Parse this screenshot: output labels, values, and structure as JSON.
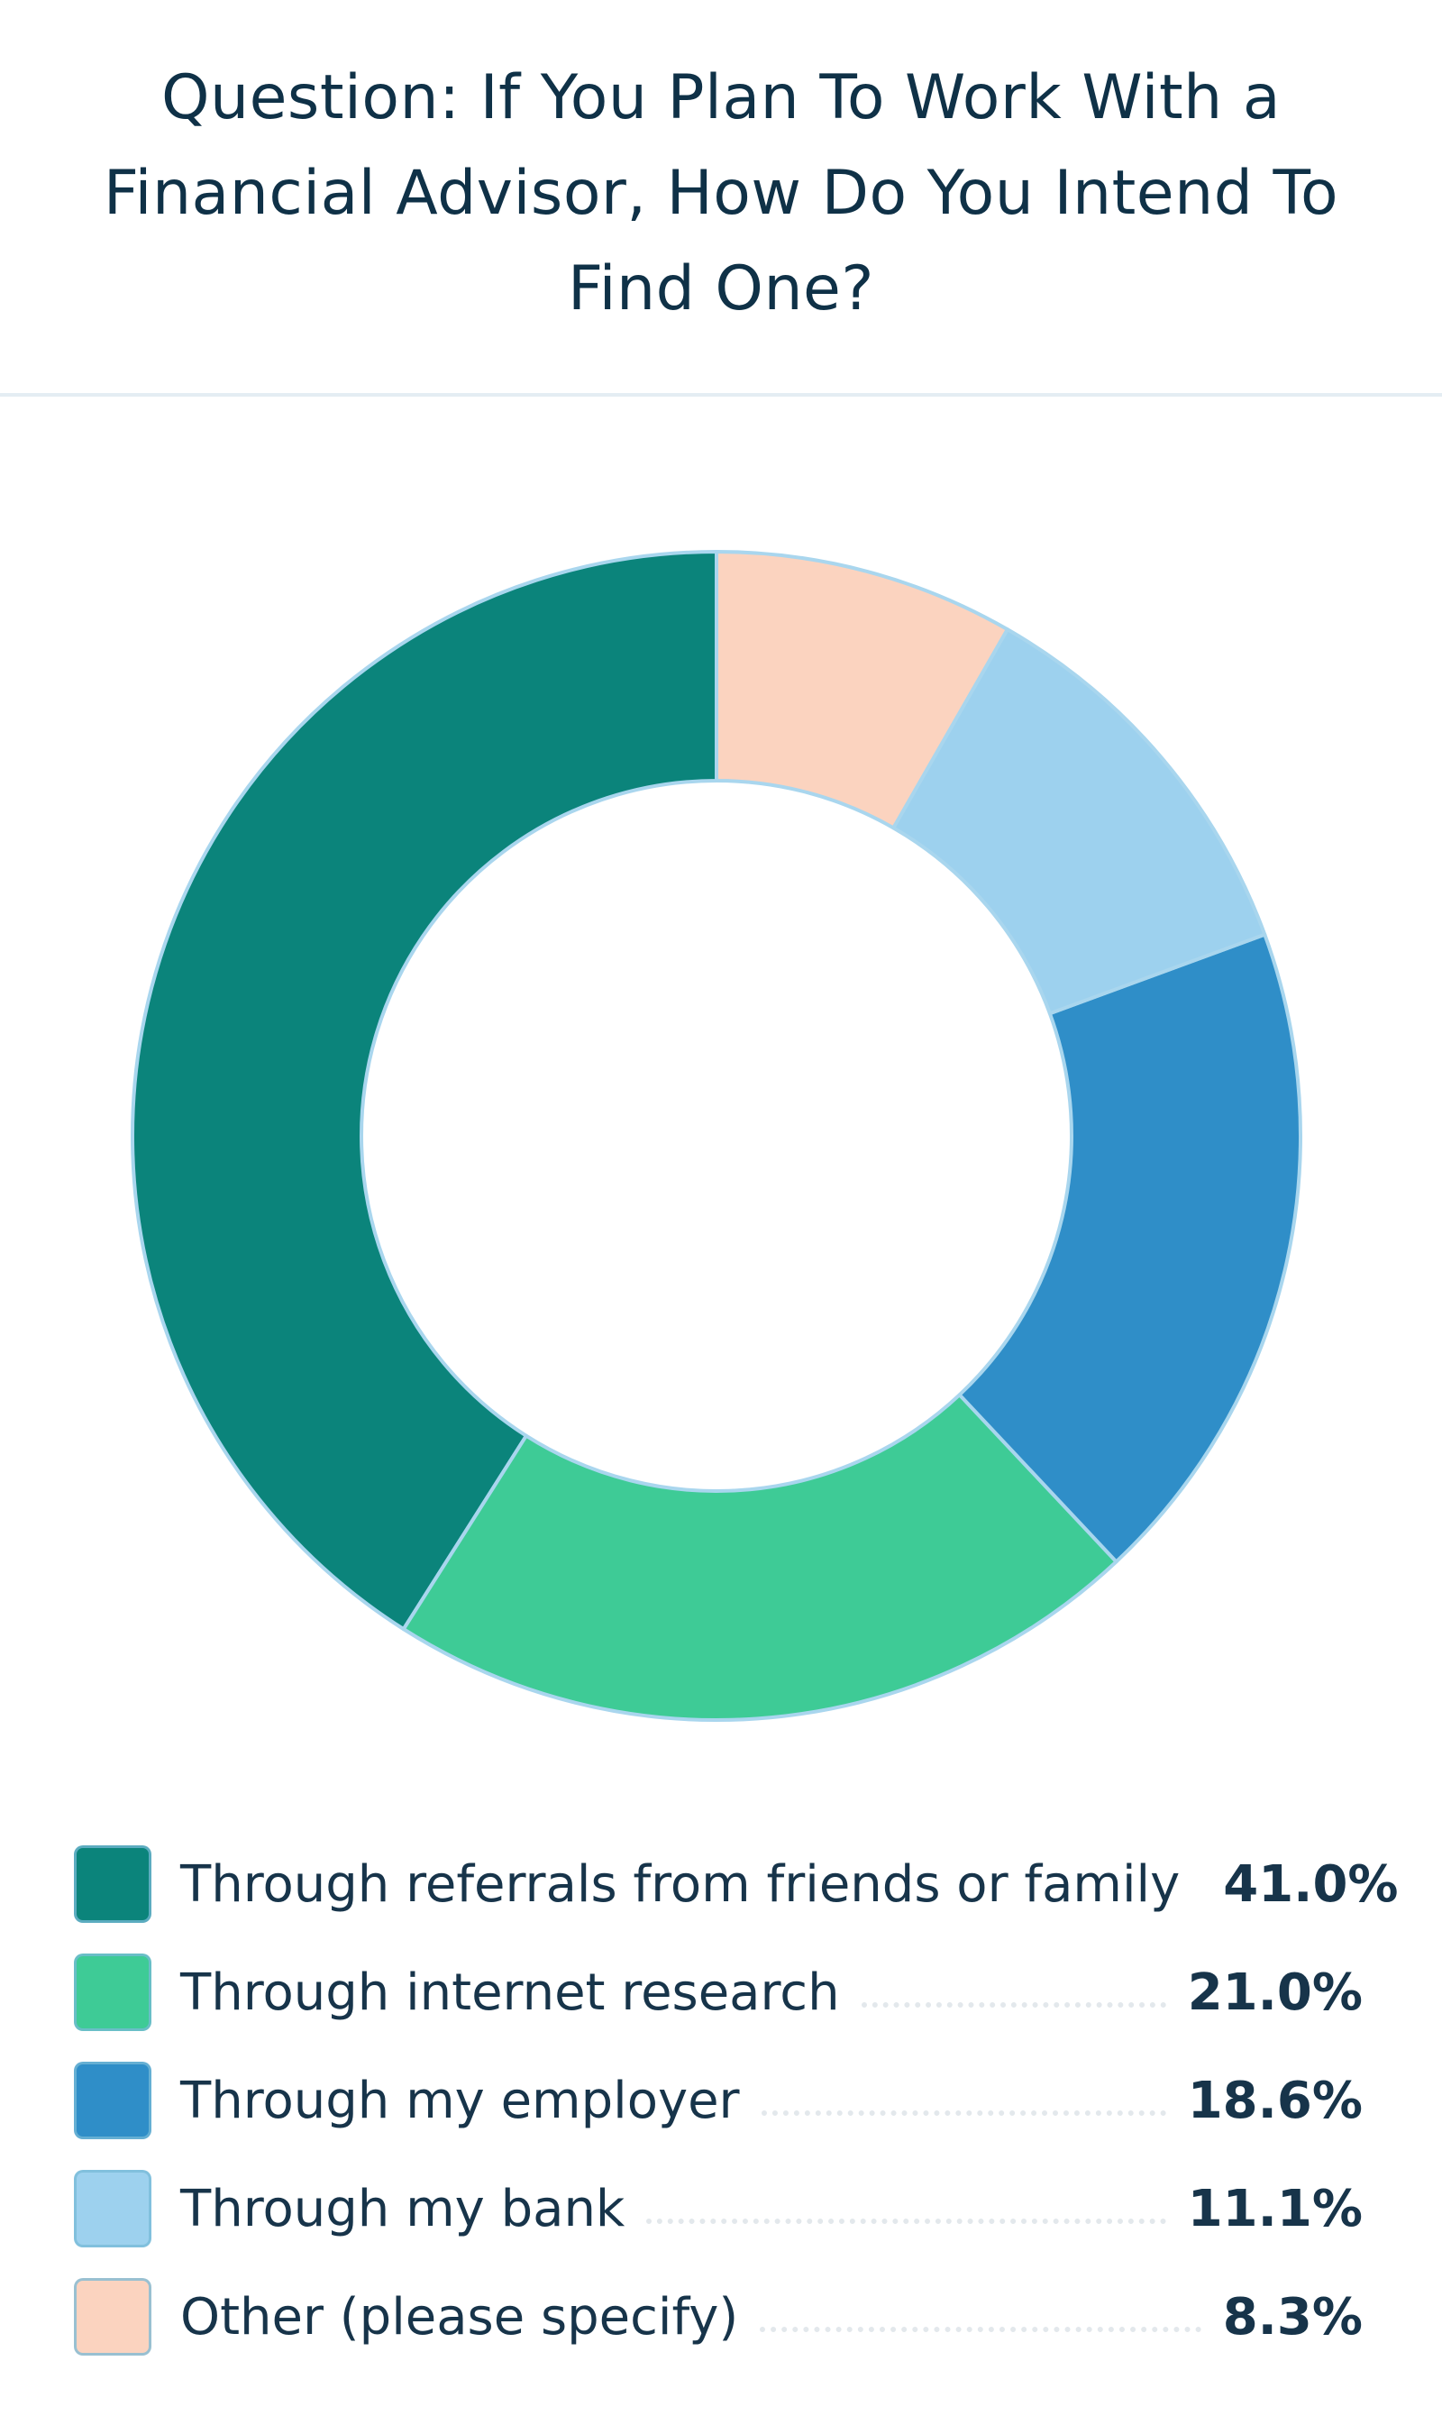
{
  "chart_data": {
    "type": "pie",
    "title": "Question: If You Plan To Work With a Financial Advisor, How Do You Intend To Find One?",
    "donut": true,
    "legend_position": "bottom",
    "slices": [
      {
        "label": "Through referrals from friends or family",
        "value": 41.0,
        "display": "41.0%",
        "color": "#0b847b"
      },
      {
        "label": "Through internet research",
        "value": 21.0,
        "display": "21.0%",
        "color": "#3ecb96"
      },
      {
        "label": "Through my employer",
        "value": 18.6,
        "display": "18.6%",
        "color": "#2f8ec8"
      },
      {
        "label": "Through my bank",
        "value": 11.1,
        "display": "11.1%",
        "color": "#9dd1ee"
      },
      {
        "label": "Other (please specify)",
        "value": 8.3,
        "display": "8.3%",
        "color": "#fbd3bf"
      }
    ]
  }
}
